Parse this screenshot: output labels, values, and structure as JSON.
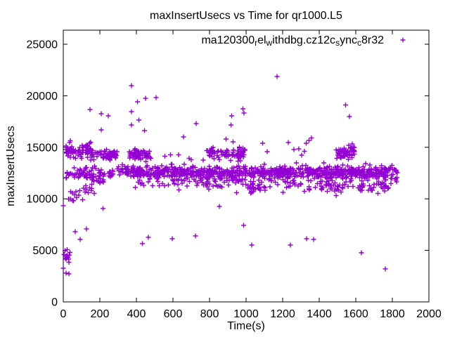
{
  "window": {
    "title": "maxInsertUsecs vs Time for qr1000.L5"
  },
  "chart_data": {
    "type": "scatter",
    "title": "maxInsertUsecs vs Time for qr1000.L5",
    "xlabel": "Time(s)",
    "ylabel": "maxInsertUsecs",
    "xlim": [
      0,
      2000
    ],
    "ylim": [
      0,
      25000
    ],
    "x_ticks": [
      0,
      200,
      400,
      600,
      800,
      1000,
      1200,
      1400,
      1600,
      1800,
      2000
    ],
    "y_ticks": [
      0,
      5000,
      10000,
      15000,
      20000,
      25000
    ],
    "grid": false,
    "legend_position": "top-right-inside",
    "background": "#ffffff",
    "axis_color": "#000000",
    "series": [
      {
        "name": "ma120300_rel_withdbg.cz12c_sync_c8r32",
        "label_segments": [
          {
            "text": "ma120300"
          },
          {
            "text": "r",
            "sub": true
          },
          {
            "text": "el"
          },
          {
            "text": "w",
            "sub": true
          },
          {
            "text": "ithdbg.cz12c"
          },
          {
            "text": "s",
            "sub": true
          },
          {
            "text": "ync"
          },
          {
            "text": "c",
            "sub": true
          },
          {
            "text": "8r32"
          }
        ],
        "marker": "plus",
        "color": "#9400D3",
        "marker_size": 7,
        "seed": 12345,
        "outlier_points": [
          [
            373,
            20980
          ],
          [
            1169,
            21860
          ],
          [
            405,
            19400
          ],
          [
            450,
            19750
          ],
          [
            508,
            19820
          ],
          [
            146,
            18660
          ],
          [
            208,
            18250
          ],
          [
            246,
            18050
          ],
          [
            373,
            18460
          ],
          [
            413,
            17640
          ],
          [
            373,
            17160
          ],
          [
            444,
            16620
          ],
          [
            208,
            16690
          ],
          [
            658,
            16000
          ],
          [
            727,
            17300
          ],
          [
            891,
            15800
          ],
          [
            918,
            17160
          ],
          [
            921,
            18050
          ],
          [
            929,
            15530
          ],
          [
            983,
            18730
          ],
          [
            989,
            18320
          ],
          [
            1545,
            19100
          ],
          [
            1566,
            18000
          ],
          [
            0,
            9330
          ],
          [
            218,
            9050
          ],
          [
            853,
            9270
          ],
          [
            65,
            6810
          ],
          [
            92,
            6060
          ],
          [
            126,
            7080
          ],
          [
            432,
            5650
          ],
          [
            466,
            6270
          ],
          [
            597,
            6130
          ],
          [
            723,
            6400
          ],
          [
            987,
            7430
          ],
          [
            1030,
            5520
          ],
          [
            1242,
            5520
          ],
          [
            1331,
            6130
          ],
          [
            1369,
            6060
          ],
          [
            1631,
            4770
          ],
          [
            1762,
            3200
          ],
          [
            0,
            3270
          ],
          [
            15,
            2790
          ],
          [
            31,
            2725
          ]
        ],
        "point_clusters": [
          {
            "t": [
              15,
              160
            ],
            "mean": 14650,
            "sd": 380,
            "n": 75
          },
          {
            "t": [
              15,
              165
            ],
            "mean": 12300,
            "sd": 350,
            "n": 45
          },
          {
            "t": [
              20,
              105
            ],
            "mean": 10300,
            "sd": 450,
            "n": 14
          },
          {
            "t": [
              100,
              170
            ],
            "mean": 11100,
            "sd": 300,
            "n": 10
          },
          {
            "t": [
              155,
              300
            ],
            "mean": 14250,
            "sd": 270,
            "n": 55
          },
          {
            "t": [
              150,
              225
            ],
            "mean": 12150,
            "sd": 420,
            "n": 30
          },
          {
            "t": [
              250,
              385
            ],
            "mean": 12600,
            "sd": 280,
            "n": 45
          },
          {
            "t": [
              358,
              482
            ],
            "mean": 14300,
            "sd": 300,
            "n": 55
          },
          {
            "t": [
              380,
              1830
            ],
            "mean": 12550,
            "sd": 300,
            "n": 780
          },
          {
            "t": [
              380,
              1830
            ],
            "mean": 11500,
            "sd": 330,
            "n": 150
          },
          {
            "t": [
              780,
              1000
            ],
            "mean": 14400,
            "sd": 330,
            "n": 85
          },
          {
            "t": [
              1490,
              1596
            ],
            "mean": 14500,
            "sd": 330,
            "n": 60
          },
          {
            "t": [
              1000,
              1105
            ],
            "mean": 11000,
            "sd": 250,
            "n": 22
          },
          {
            "t": [
              1430,
              1530
            ],
            "mean": 11050,
            "sd": 250,
            "n": 18
          },
          {
            "t": [
              1620,
              1760
            ],
            "mean": 11100,
            "sd": 250,
            "n": 22
          },
          {
            "t": [
              1090,
              1390
            ],
            "mean": 15300,
            "sd": 500,
            "n": 10
          },
          {
            "t": [
              480,
              790
            ],
            "mean": 14200,
            "sd": 400,
            "n": 6
          },
          {
            "t": [
              0,
              46
            ],
            "mean": 4400,
            "sd": 260,
            "n": 14
          }
        ]
      }
    ]
  }
}
